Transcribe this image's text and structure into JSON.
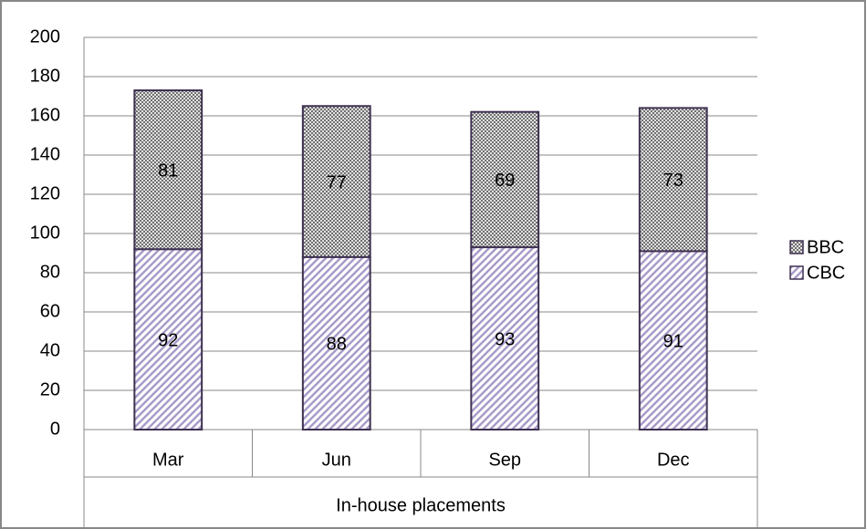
{
  "chart_data": {
    "type": "stacked_bar",
    "x_label": "In-house placements",
    "categories": [
      "Mar",
      "Jun",
      "Sep",
      "Dec"
    ],
    "series": [
      {
        "name": "CBC",
        "color": "#a99bc9",
        "values": [
          92,
          88,
          93,
          91
        ]
      },
      {
        "name": "BBC",
        "color": "#555555",
        "values": [
          81,
          77,
          69,
          73
        ]
      }
    ],
    "ylim": [
      0,
      200
    ],
    "yticks": [
      0,
      20,
      40,
      60,
      80,
      100,
      120,
      140,
      160,
      180,
      200
    ],
    "grid": true
  }
}
